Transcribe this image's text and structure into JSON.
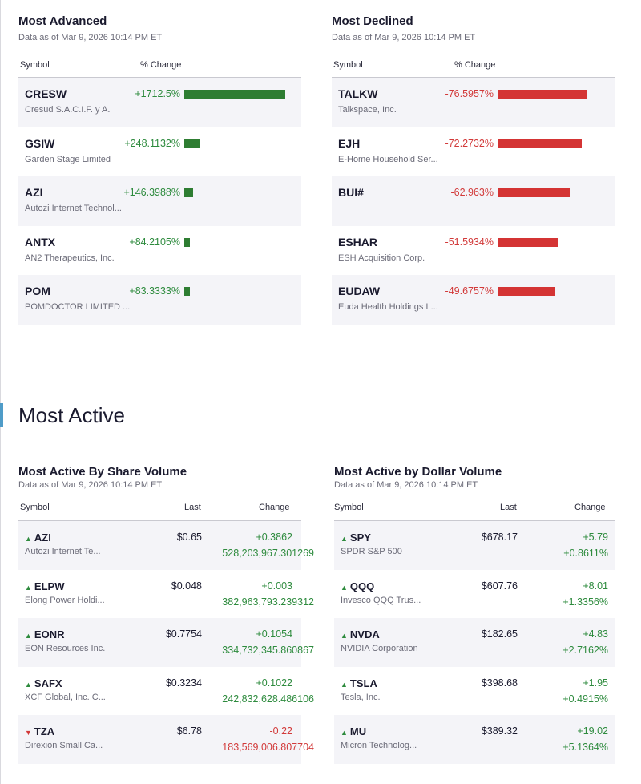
{
  "most_advanced": {
    "title": "Most Advanced",
    "as_of": "Data as of Mar 9, 2026 10:14 PM ET",
    "col_symbol": "Symbol",
    "col_change": "% Change",
    "rows": [
      {
        "symbol": "CRESW",
        "name": "Cresud S.A.C.I.F. y A.",
        "pct": "+1712.5%",
        "value": 1712.5
      },
      {
        "symbol": "GSIW",
        "name": "Garden Stage Limited",
        "pct": "+248.1132%",
        "value": 248.1132
      },
      {
        "symbol": "AZI",
        "name": "Autozi Internet Technol...",
        "pct": "+146.3988%",
        "value": 146.3988
      },
      {
        "symbol": "ANTX",
        "name": "AN2 Therapeutics, Inc.",
        "pct": "+84.2105%",
        "value": 84.2105
      },
      {
        "symbol": "POM",
        "name": "POMDOCTOR LIMITED ...",
        "pct": "+83.3333%",
        "value": 83.3333
      }
    ]
  },
  "most_declined": {
    "title": "Most Declined",
    "as_of": "Data as of Mar 9, 2026 10:14 PM ET",
    "col_symbol": "Symbol",
    "col_change": "% Change",
    "rows": [
      {
        "symbol": "TALKW",
        "name": "Talkspace, Inc.",
        "pct": "-76.5957%",
        "value": -76.5957
      },
      {
        "symbol": "EJH",
        "name": "E-Home Household Ser...",
        "pct": "-72.2732%",
        "value": -72.2732
      },
      {
        "symbol": "BUI#",
        "name": "",
        "pct": "-62.963%",
        "value": -62.963
      },
      {
        "symbol": "ESHAR",
        "name": "ESH Acquisition Corp.",
        "pct": "-51.5934%",
        "value": -51.5934
      },
      {
        "symbol": "EUDAW",
        "name": "Euda Health Holdings L...",
        "pct": "-49.6757%",
        "value": -49.6757
      }
    ]
  },
  "most_active_title": "Most Active",
  "share_volume": {
    "title": "Most Active By Share Volume",
    "as_of": "Data as of Mar 9, 2026 10:14 PM ET",
    "col_symbol": "Symbol",
    "col_last": "Last",
    "col_change": "Change",
    "rows": [
      {
        "symbol": "AZI",
        "name": "Autozi Internet Te...",
        "last": "$0.65",
        "change": "+0.3862",
        "volume": "528,203,967.301269",
        "dir": "up"
      },
      {
        "symbol": "ELPW",
        "name": "Elong Power Holdi...",
        "last": "$0.048",
        "change": "+0.003",
        "volume": "382,963,793.239312",
        "dir": "up"
      },
      {
        "symbol": "EONR",
        "name": "EON Resources Inc.",
        "last": "$0.7754",
        "change": "+0.1054",
        "volume": "334,732,345.860867",
        "dir": "up"
      },
      {
        "symbol": "SAFX",
        "name": "XCF Global, Inc. C...",
        "last": "$0.3234",
        "change": "+0.1022",
        "volume": "242,832,628.486106",
        "dir": "up"
      },
      {
        "symbol": "TZA",
        "name": "Direxion Small Ca...",
        "last": "$6.78",
        "change": "-0.22",
        "volume": "183,569,006.807704",
        "dir": "down"
      }
    ]
  },
  "dollar_volume": {
    "title": "Most Active by Dollar Volume",
    "as_of": "Data as of Mar 9, 2026 10:14 PM ET",
    "col_symbol": "Symbol",
    "col_last": "Last",
    "col_change": "Change",
    "rows": [
      {
        "symbol": "SPY",
        "name": "SPDR S&P 500",
        "last": "$678.17",
        "change": "+5.79",
        "pct": "+0.8611%",
        "dir": "up"
      },
      {
        "symbol": "QQQ",
        "name": "Invesco QQQ Trus...",
        "last": "$607.76",
        "change": "+8.01",
        "pct": "+1.3356%",
        "dir": "up"
      },
      {
        "symbol": "NVDA",
        "name": "NVIDIA Corporation",
        "last": "$182.65",
        "change": "+4.83",
        "pct": "+2.7162%",
        "dir": "up"
      },
      {
        "symbol": "TSLA",
        "name": "Tesla, Inc.",
        "last": "$398.68",
        "change": "+1.95",
        "pct": "+0.4915%",
        "dir": "up"
      },
      {
        "symbol": "MU",
        "name": "Micron Technolog...",
        "last": "$389.32",
        "change": "+19.02",
        "pct": "+5.1364%",
        "dir": "up"
      }
    ]
  },
  "colors": {
    "up": "#2e8b3e",
    "down": "#d23a3a",
    "accent": "#4f9cc8"
  }
}
